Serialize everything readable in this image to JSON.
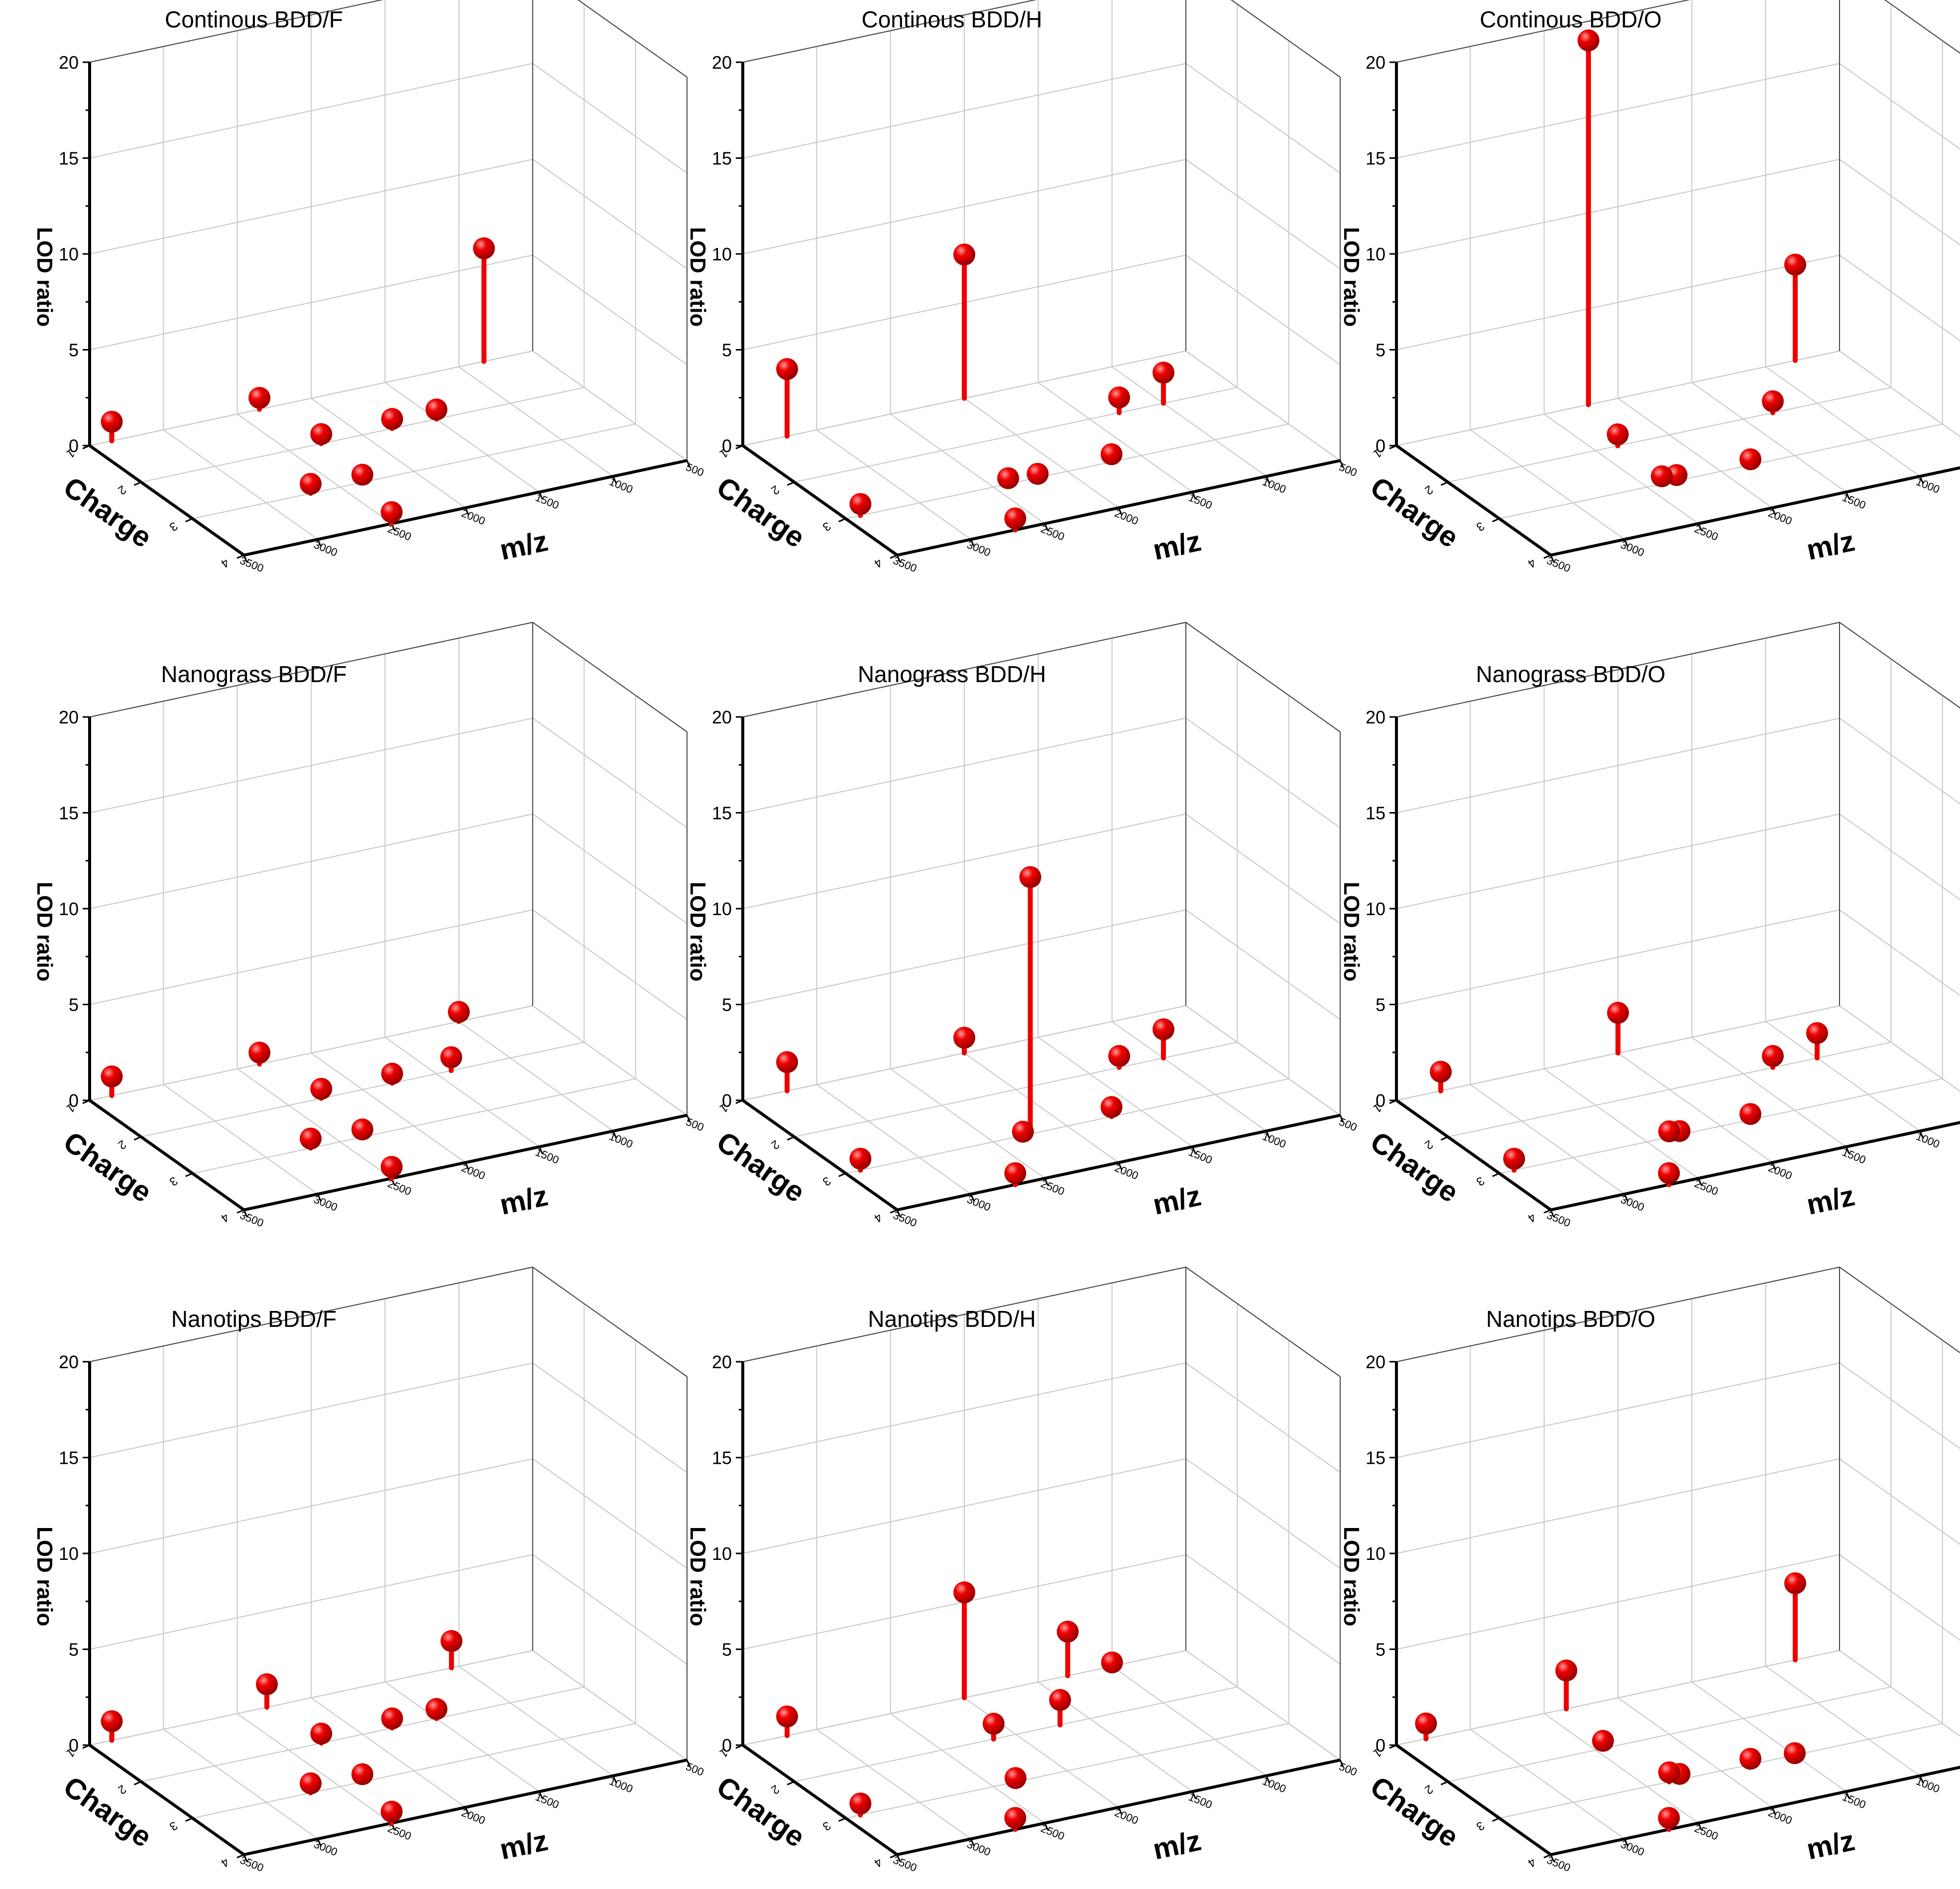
{
  "figure": {
    "z_axis_label": "LOD ratio",
    "x_axis_label": "m/z",
    "y_axis_label": "Charge",
    "marker_color": "#ee0000",
    "marker_highlight": "#ff9a9a",
    "marker_shadow": "#8a0000"
  },
  "chart_data": [
    {
      "type": "scatter3d-stem",
      "title": "Continous BDD/F",
      "xlabel": "m/z",
      "ylabel": "Charge",
      "zlabel": "LOD ratio",
      "xlim": [
        3500,
        500
      ],
      "ylim": [
        1,
        4
      ],
      "zlim": [
        0,
        20
      ],
      "xticks": [
        "3500",
        "3000",
        "2500",
        "2000",
        "1500",
        "1000",
        "500"
      ],
      "yticks": [
        "1",
        "2",
        "3",
        "4"
      ],
      "zticks": [
        "0",
        "5",
        "10",
        "15",
        "20"
      ],
      "points": [
        {
          "mz": 3350,
          "charge": 1,
          "lod": 1.0
        },
        {
          "mz": 2350,
          "charge": 1,
          "lod": 0.6
        },
        {
          "mz": 2280,
          "charge": 2,
          "lod": 0.5
        },
        {
          "mz": 2350,
          "charge": 3,
          "lod": 0.4
        },
        {
          "mz": 1800,
          "charge": 2,
          "lod": 0.5
        },
        {
          "mz": 1500,
          "charge": 2,
          "lod": 0.5
        },
        {
          "mz": 830,
          "charge": 1,
          "lod": 5.9
        },
        {
          "mz": 2700,
          "charge": 3,
          "lod": 0.5
        },
        {
          "mz": 2500,
          "charge": 4,
          "lod": 0.6
        }
      ]
    },
    {
      "type": "scatter3d-stem",
      "title": "Continous BDD/H",
      "xlabel": "m/z",
      "ylabel": "Charge",
      "zlabel": "LOD ratio",
      "xlim": [
        3500,
        500
      ],
      "ylim": [
        1,
        4
      ],
      "zlim": [
        0,
        20
      ],
      "xticks": [
        "3500",
        "3000",
        "2500",
        "2000",
        "1500",
        "1000",
        "500"
      ],
      "yticks": [
        "1",
        "2",
        "3",
        "4"
      ],
      "zticks": [
        "0",
        "5",
        "10",
        "15",
        "20"
      ],
      "points": [
        {
          "mz": 3400,
          "charge": 3,
          "lod": 0.6
        },
        {
          "mz": 3200,
          "charge": 1,
          "lod": 3.5
        },
        {
          "mz": 2000,
          "charge": 1,
          "lod": 7.5
        },
        {
          "mz": 2400,
          "charge": 3,
          "lod": 0.3
        },
        {
          "mz": 2200,
          "charge": 3,
          "lod": 0.2
        },
        {
          "mz": 1700,
          "charge": 3,
          "lod": 0.4
        },
        {
          "mz": 1300,
          "charge": 2,
          "lod": 0.8
        },
        {
          "mz": 1000,
          "charge": 2,
          "lod": 1.6
        },
        {
          "mz": 2700,
          "charge": 4,
          "lod": 0.6
        }
      ]
    },
    {
      "type": "scatter3d-stem",
      "title": "Continous BDD/O",
      "xlabel": "m/z",
      "ylabel": "Charge",
      "zlabel": "LOD ratio",
      "xlim": [
        3500,
        500
      ],
      "ylim": [
        1,
        4
      ],
      "zlim": [
        0,
        20
      ],
      "xticks": [
        "3500",
        "3000",
        "2500",
        "2000",
        "1500",
        "1000",
        "500"
      ],
      "yticks": [
        "1",
        "2",
        "3",
        "4"
      ],
      "zticks": [
        "0",
        "5",
        "10",
        "15",
        "20"
      ],
      "points": [
        {
          "mz": 2200,
          "charge": 1,
          "lod": 19.0
        },
        {
          "mz": 2350,
          "charge": 2,
          "lod": 0.6
        },
        {
          "mz": 2400,
          "charge": 3,
          "lod": 0.4
        },
        {
          "mz": 2300,
          "charge": 3,
          "lod": 0.3
        },
        {
          "mz": 1800,
          "charge": 3,
          "lod": 0.3
        },
        {
          "mz": 1300,
          "charge": 2,
          "lod": 0.6
        },
        {
          "mz": 800,
          "charge": 1,
          "lod": 5.0
        }
      ]
    },
    {
      "type": "scatter3d-stem",
      "title": "Nanograss BDD/F",
      "xlabel": "m/z",
      "ylabel": "Charge",
      "zlabel": "LOD ratio",
      "xlim": [
        3500,
        500
      ],
      "ylim": [
        1,
        4
      ],
      "zlim": [
        0,
        20
      ],
      "xticks": [
        "3500",
        "3000",
        "2500",
        "2000",
        "1500",
        "1000",
        "500"
      ],
      "yticks": [
        "1",
        "2",
        "3",
        "4"
      ],
      "zticks": [
        "0",
        "5",
        "10",
        "15",
        "20"
      ],
      "points": [
        {
          "mz": 3350,
          "charge": 1,
          "lod": 1.0
        },
        {
          "mz": 2350,
          "charge": 1,
          "lod": 0.6
        },
        {
          "mz": 2280,
          "charge": 2,
          "lod": 0.5
        },
        {
          "mz": 2350,
          "charge": 3,
          "lod": 0.4
        },
        {
          "mz": 1800,
          "charge": 2,
          "lod": 0.5
        },
        {
          "mz": 1400,
          "charge": 2,
          "lod": 0.7
        },
        {
          "mz": 1000,
          "charge": 1,
          "lod": 0.5
        },
        {
          "mz": 2700,
          "charge": 3,
          "lod": 0.5
        },
        {
          "mz": 2500,
          "charge": 4,
          "lod": 0.6
        }
      ]
    },
    {
      "type": "scatter3d-stem",
      "title": "Nanograss BDD/H",
      "xlabel": "m/z",
      "ylabel": "Charge",
      "zlabel": "LOD ratio",
      "xlim": [
        3500,
        500
      ],
      "ylim": [
        1,
        4
      ],
      "zlim": [
        0,
        20
      ],
      "xticks": [
        "3500",
        "3000",
        "2500",
        "2000",
        "1500",
        "1000",
        "500"
      ],
      "yticks": [
        "1",
        "2",
        "3",
        "4"
      ],
      "zticks": [
        "0",
        "5",
        "10",
        "15",
        "20"
      ],
      "points": [
        {
          "mz": 3400,
          "charge": 3,
          "lod": 0.6
        },
        {
          "mz": 3200,
          "charge": 1,
          "lod": 1.5
        },
        {
          "mz": 2000,
          "charge": 1,
          "lod": 0.8
        },
        {
          "mz": 2250,
          "charge": 3,
          "lod": 13.4
        },
        {
          "mz": 2300,
          "charge": 3,
          "lod": 0.2
        },
        {
          "mz": 1700,
          "charge": 3,
          "lod": 0.5
        },
        {
          "mz": 1300,
          "charge": 2,
          "lod": 0.6
        },
        {
          "mz": 1000,
          "charge": 2,
          "lod": 1.5
        },
        {
          "mz": 2700,
          "charge": 4,
          "lod": 0.6
        }
      ]
    },
    {
      "type": "scatter3d-stem",
      "title": "Nanograss BDD/O",
      "xlabel": "m/z",
      "ylabel": "Charge",
      "zlabel": "LOD ratio",
      "xlim": [
        3500,
        500
      ],
      "ylim": [
        1,
        4
      ],
      "zlim": [
        0,
        20
      ],
      "xticks": [
        "3500",
        "3000",
        "2500",
        "2000",
        "1500",
        "1000",
        "500"
      ],
      "yticks": [
        "1",
        "2",
        "3",
        "4"
      ],
      "zticks": [
        "0",
        "5",
        "10",
        "15",
        "20"
      ],
      "points": [
        {
          "mz": 3400,
          "charge": 3,
          "lod": 0.6
        },
        {
          "mz": 3200,
          "charge": 1,
          "lod": 1.0
        },
        {
          "mz": 2000,
          "charge": 1,
          "lod": 2.1
        },
        {
          "mz": 2350,
          "charge": 3,
          "lod": 0.3
        },
        {
          "mz": 2280,
          "charge": 3,
          "lod": 0.2
        },
        {
          "mz": 1800,
          "charge": 3,
          "lod": 0.3
        },
        {
          "mz": 1300,
          "charge": 2,
          "lod": 0.6
        },
        {
          "mz": 1000,
          "charge": 2,
          "lod": 1.3
        },
        {
          "mz": 2700,
          "charge": 4,
          "lod": 0.6
        }
      ]
    },
    {
      "type": "scatter3d-stem",
      "title": "Nanotips BDD/F",
      "xlabel": "m/z",
      "ylabel": "Charge",
      "zlabel": "LOD ratio",
      "xlim": [
        3500,
        500
      ],
      "ylim": [
        1,
        4
      ],
      "zlim": [
        0,
        20
      ],
      "xticks": [
        "3500",
        "3000",
        "2500",
        "2000",
        "1500",
        "1000",
        "500"
      ],
      "yticks": [
        "1",
        "2",
        "3",
        "4"
      ],
      "zticks": [
        "0",
        "5",
        "10",
        "15",
        "20"
      ],
      "points": [
        {
          "mz": 3350,
          "charge": 1,
          "lod": 1.0
        },
        {
          "mz": 2300,
          "charge": 1,
          "lod": 1.2
        },
        {
          "mz": 2280,
          "charge": 2,
          "lod": 0.5
        },
        {
          "mz": 2350,
          "charge": 3,
          "lod": 0.4
        },
        {
          "mz": 1800,
          "charge": 2,
          "lod": 0.5
        },
        {
          "mz": 1500,
          "charge": 2,
          "lod": 0.5
        },
        {
          "mz": 1050,
          "charge": 1,
          "lod": 1.4
        },
        {
          "mz": 2700,
          "charge": 3,
          "lod": 0.5
        },
        {
          "mz": 2500,
          "charge": 4,
          "lod": 0.6
        }
      ]
    },
    {
      "type": "scatter3d-stem",
      "title": "Nanotips BDD/H",
      "xlabel": "m/z",
      "ylabel": "Charge",
      "zlabel": "LOD ratio",
      "xlim": [
        3500,
        500
      ],
      "ylim": [
        1,
        4
      ],
      "zlim": [
        0,
        20
      ],
      "xticks": [
        "3500",
        "3000",
        "2500",
        "2000",
        "1500",
        "1000",
        "500"
      ],
      "yticks": [
        "1",
        "2",
        "3",
        "4"
      ],
      "zticks": [
        "0",
        "5",
        "10",
        "15",
        "20"
      ],
      "points": [
        {
          "mz": 3400,
          "charge": 3,
          "lod": 0.6
        },
        {
          "mz": 3200,
          "charge": 1,
          "lod": 1.0
        },
        {
          "mz": 2000,
          "charge": 1,
          "lod": 5.5
        },
        {
          "mz": 2150,
          "charge": 2,
          "lod": 0.8
        },
        {
          "mz": 2350,
          "charge": 3,
          "lod": 0.2
        },
        {
          "mz": 1700,
          "charge": 2,
          "lod": 1.3
        },
        {
          "mz": 1300,
          "charge": 1,
          "lod": 2.3
        },
        {
          "mz": 1000,
          "charge": 1,
          "lod": 0.2
        },
        {
          "mz": 2700,
          "charge": 4,
          "lod": 0.6
        }
      ]
    },
    {
      "type": "scatter3d-stem",
      "title": "Nanotips BDD/O",
      "xlabel": "m/z",
      "ylabel": "Charge",
      "zlabel": "LOD ratio",
      "xlim": [
        3500,
        500
      ],
      "ylim": [
        1,
        4
      ],
      "zlim": [
        0,
        20
      ],
      "xticks": [
        "3500",
        "3000",
        "2500",
        "2000",
        "1500",
        "1000",
        "500"
      ],
      "yticks": [
        "1",
        "2",
        "3",
        "4"
      ],
      "zticks": [
        "0",
        "5",
        "10",
        "15",
        "20"
      ],
      "points": [
        {
          "mz": 3300,
          "charge": 1,
          "lod": 0.8
        },
        {
          "mz": 2350,
          "charge": 1,
          "lod": 2.0
        },
        {
          "mz": 2350,
          "charge": 3,
          "lod": 0.5
        },
        {
          "mz": 2280,
          "charge": 3,
          "lod": 0.3
        },
        {
          "mz": 1800,
          "charge": 3,
          "lod": 0.3
        },
        {
          "mz": 1500,
          "charge": 3,
          "lod": 0.1
        },
        {
          "mz": 800,
          "charge": 1,
          "lod": 4.0
        },
        {
          "mz": 2450,
          "charge": 2,
          "lod": 0.4
        },
        {
          "mz": 2700,
          "charge": 4,
          "lod": 0.6
        }
      ]
    }
  ]
}
